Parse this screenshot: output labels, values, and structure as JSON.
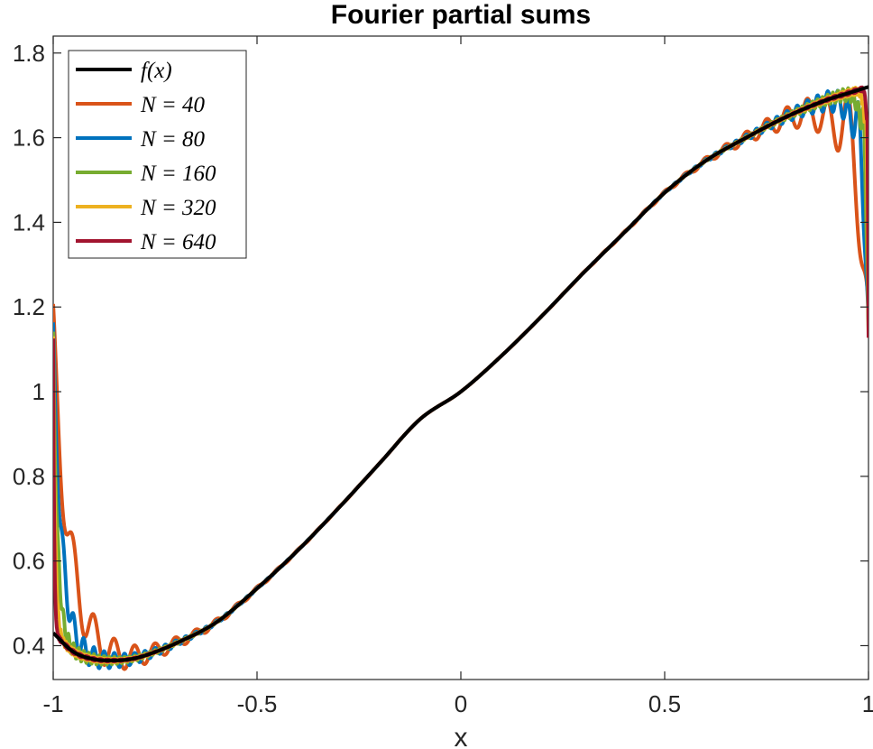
{
  "chart_data": {
    "type": "line",
    "title": "Fourier partial sums",
    "xlabel": "x",
    "ylabel": "",
    "xlim": [
      -1,
      1
    ],
    "ylim": [
      0.32,
      1.84
    ],
    "xticks": [
      -1,
      -0.5,
      0,
      0.5,
      1
    ],
    "xtick_labels": [
      "-1",
      "-0.5",
      "0",
      "0.5",
      "1"
    ],
    "yticks": [
      0.4,
      0.6,
      0.8,
      1.0,
      1.2,
      1.4,
      1.6,
      1.8
    ],
    "ytick_labels": [
      "0.4",
      "0.6",
      "0.8",
      "1",
      "1.2",
      "1.4",
      "1.6",
      "1.8"
    ],
    "grid": false,
    "legend_position": "top-left",
    "function": {
      "x": [
        -1.0,
        -0.95,
        -0.9,
        -0.85,
        -0.8,
        -0.75,
        -0.7,
        -0.6,
        -0.5,
        -0.4,
        -0.3,
        -0.2,
        -0.1,
        0.0,
        0.1,
        0.2,
        0.3,
        0.4,
        0.5,
        0.6,
        0.7,
        0.8,
        0.9,
        0.95,
        1.0
      ],
      "y": [
        0.43,
        0.385,
        0.368,
        0.365,
        0.37,
        0.385,
        0.405,
        0.455,
        0.535,
        0.625,
        0.725,
        0.83,
        0.935,
        1.0,
        1.085,
        1.18,
        1.28,
        1.375,
        1.47,
        1.545,
        1.6,
        1.65,
        1.69,
        1.705,
        1.72
      ]
    },
    "series": [
      {
        "name": "f(x)",
        "legend_label": "f(x)",
        "color": "#000000",
        "N": null
      },
      {
        "name": "N = 40",
        "legend_label": "N = 40",
        "color": "#D95319",
        "N": 40
      },
      {
        "name": "N = 80",
        "legend_label": "N = 80",
        "color": "#0072BD",
        "N": 80
      },
      {
        "name": "N = 160",
        "legend_label": "N = 160",
        "color": "#77AC30",
        "N": 160
      },
      {
        "name": "N = 320",
        "legend_label": "N = 320",
        "color": "#EDB120",
        "N": 320
      },
      {
        "name": "N = 640",
        "legend_label": "N = 640",
        "color": "#A2142F",
        "N": 640
      }
    ],
    "gibbs_jump_endpoint_value": 1.12,
    "gibbs_overshoot_max": 1.84
  }
}
